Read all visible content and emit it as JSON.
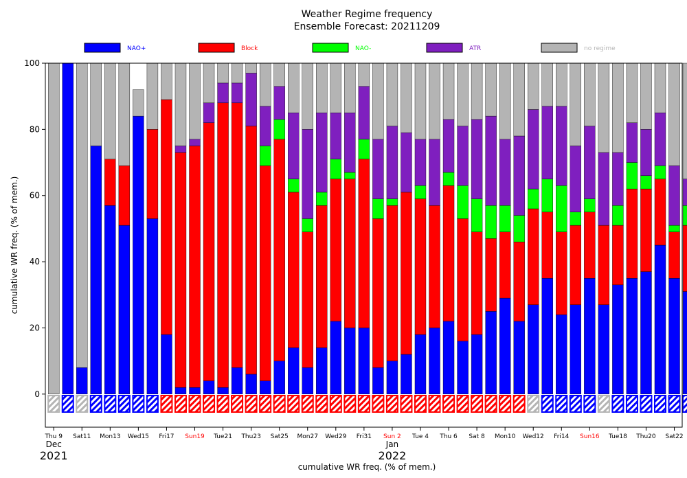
{
  "chart_data": {
    "type": "bar",
    "stacked": true,
    "title": "Weather Regime frequency",
    "subtitle": "Ensemble Forecast: 20211209",
    "ylabel": "cumulative WR freq. (% of mem.)",
    "xlabel": "cumulative WR freq. (% of mem.)",
    "ylim": [
      -10,
      100
    ],
    "yticks": [
      0,
      20,
      40,
      60,
      80,
      100
    ],
    "legend_position": "top",
    "x_ticks": [
      {
        "label": "Thu 9",
        "color": "#000000"
      },
      {
        "label": "Sat11",
        "color": "#000000"
      },
      {
        "label": "Mon13",
        "color": "#000000"
      },
      {
        "label": "Wed15",
        "color": "#000000"
      },
      {
        "label": "Fri17",
        "color": "#000000"
      },
      {
        "label": "Sun19",
        "color": "#ff0000"
      },
      {
        "label": "Tue21",
        "color": "#000000"
      },
      {
        "label": "Thu23",
        "color": "#000000"
      },
      {
        "label": "Sat25",
        "color": "#000000"
      },
      {
        "label": "Mon27",
        "color": "#000000"
      },
      {
        "label": "Wed29",
        "color": "#000000"
      },
      {
        "label": "Fri31",
        "color": "#000000"
      },
      {
        "label": "Sun 2",
        "color": "#ff0000"
      },
      {
        "label": "Tue 4",
        "color": "#000000"
      },
      {
        "label": "Thu 6",
        "color": "#000000"
      },
      {
        "label": "Sat 8",
        "color": "#000000"
      },
      {
        "label": "Mon10",
        "color": "#000000"
      },
      {
        "label": "Wed12",
        "color": "#000000"
      },
      {
        "label": "Fri14",
        "color": "#000000"
      },
      {
        "label": "Sun16",
        "color": "#ff0000"
      },
      {
        "label": "Tue18",
        "color": "#000000"
      },
      {
        "label": "Thu20",
        "color": "#000000"
      },
      {
        "label": "Sat22",
        "color": "#000000"
      }
    ],
    "month_labels": [
      {
        "month": "Dec",
        "year": "2021"
      },
      {
        "month": "Jan",
        "year": "2022"
      }
    ],
    "series": [
      {
        "name": "NAO+",
        "color": "#0000ff",
        "values": [
          0,
          100,
          8,
          75,
          57,
          51,
          84,
          53,
          18,
          2,
          2,
          4,
          2,
          8,
          6,
          4,
          10,
          14,
          8,
          14,
          22,
          20,
          20,
          8,
          10,
          12,
          18,
          20,
          22,
          16,
          18,
          25,
          29,
          22,
          27,
          35,
          24,
          27,
          35,
          27,
          33,
          35,
          37,
          45,
          35,
          31
        ]
      },
      {
        "name": "Block",
        "color": "#ff0000",
        "values": [
          0,
          0,
          0,
          0,
          14,
          18,
          0,
          27,
          71,
          71,
          73,
          78,
          86,
          80,
          75,
          65,
          67,
          47,
          41,
          43,
          43,
          45,
          51,
          45,
          47,
          49,
          41,
          37,
          41,
          37,
          31,
          22,
          20,
          24,
          29,
          20,
          25,
          24,
          20,
          24,
          18,
          27,
          25,
          20,
          14,
          20
        ]
      },
      {
        "name": "NAO-",
        "color": "#00ff00",
        "values": [
          0,
          0,
          0,
          0,
          0,
          0,
          0,
          0,
          0,
          0,
          0,
          0,
          0,
          0,
          0,
          6,
          6,
          4,
          4,
          4,
          6,
          2,
          6,
          6,
          2,
          0,
          4,
          0,
          4,
          10,
          10,
          10,
          8,
          8,
          6,
          10,
          14,
          4,
          4,
          0,
          6,
          8,
          4,
          4,
          2,
          6
        ]
      },
      {
        "name": "ATR",
        "color": "#7f1fbf",
        "values": [
          0,
          0,
          0,
          0,
          0,
          0,
          0,
          0,
          0,
          2,
          2,
          6,
          6,
          6,
          16,
          12,
          10,
          20,
          27,
          24,
          14,
          18,
          16,
          18,
          22,
          18,
          14,
          20,
          16,
          18,
          24,
          27,
          20,
          24,
          24,
          22,
          24,
          20,
          22,
          22,
          16,
          12,
          14,
          16,
          18,
          8
        ]
      },
      {
        "name": "no regime",
        "color": "#b4b4b4",
        "values": [
          100,
          0,
          92,
          25,
          29,
          31,
          8,
          20,
          11,
          25,
          23,
          12,
          6,
          6,
          3,
          13,
          7,
          15,
          20,
          15,
          15,
          15,
          7,
          23,
          19,
          21,
          23,
          23,
          17,
          19,
          17,
          16,
          23,
          22,
          14,
          13,
          13,
          25,
          19,
          27,
          27,
          18,
          20,
          15,
          31,
          35
        ]
      }
    ],
    "below_zero_indicator": {
      "description_colors": [
        "#b4b4b4",
        "#0000ff",
        "#b4b4b4",
        "#0000ff",
        "#0000ff",
        "#0000ff",
        "#0000ff",
        "#0000ff",
        "#ff0000",
        "#ff0000",
        "#ff0000",
        "#ff0000",
        "#ff0000",
        "#ff0000",
        "#ff0000",
        "#ff0000",
        "#ff0000",
        "#ff0000",
        "#ff0000",
        "#ff0000",
        "#ff0000",
        "#ff0000",
        "#ff0000",
        "#ff0000",
        "#ff0000",
        "#ff0000",
        "#ff0000",
        "#ff0000",
        "#ff0000",
        "#ff0000",
        "#ff0000",
        "#ff0000",
        "#ff0000",
        "#ff0000",
        "#b4b4b4",
        "#0000ff",
        "#0000ff",
        "#0000ff",
        "#0000ff",
        "#b4b4b4",
        "#0000ff",
        "#0000ff",
        "#0000ff",
        "#0000ff",
        "#0000ff",
        "#0000ff"
      ]
    }
  }
}
